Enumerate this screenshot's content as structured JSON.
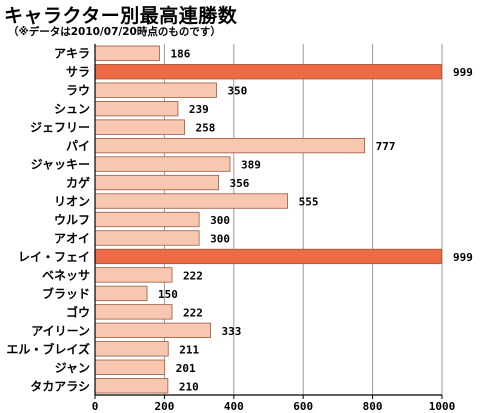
{
  "chart_data": {
    "type": "bar",
    "orientation": "horizontal",
    "title": "キャラクター別最高連勝数",
    "subtitle": "（※データは2010/07/20時点のものです）",
    "xlabel": "",
    "ylabel": "",
    "xlim": [
      0,
      1000
    ],
    "xticks": [
      "0",
      "200",
      "400",
      "600",
      "800",
      "1000"
    ],
    "grid": true,
    "categories": [
      "アキラ",
      "サラ",
      "ラウ",
      "シュン",
      "ジェフリー",
      "パイ",
      "ジャッキー",
      "カゲ",
      "リオン",
      "ウルフ",
      "アオイ",
      "レイ・フェイ",
      "ベネッサ",
      "ブラッド",
      "ゴウ",
      "アイリーン",
      "エル・ブレイズ",
      "ジャン",
      "タカアラシ"
    ],
    "values": [
      186,
      999,
      350,
      239,
      258,
      777,
      389,
      356,
      555,
      300,
      300,
      999,
      222,
      150,
      222,
      333,
      211,
      201,
      210
    ],
    "value_labels": [
      "186",
      "999",
      "350",
      "239",
      "258",
      "777",
      "389",
      "356",
      "555",
      "300",
      "300",
      "999",
      "222",
      "150",
      "222",
      "333",
      "211",
      "201",
      "210"
    ],
    "highlighted": [
      1,
      11
    ],
    "colors": {
      "bar": "#f8c7b0",
      "bar_highlight": "#ee6a45",
      "bar_stroke": "#9a5a40",
      "grid": "#9a9a9a",
      "axis": "#000000",
      "text": "#000000"
    }
  }
}
